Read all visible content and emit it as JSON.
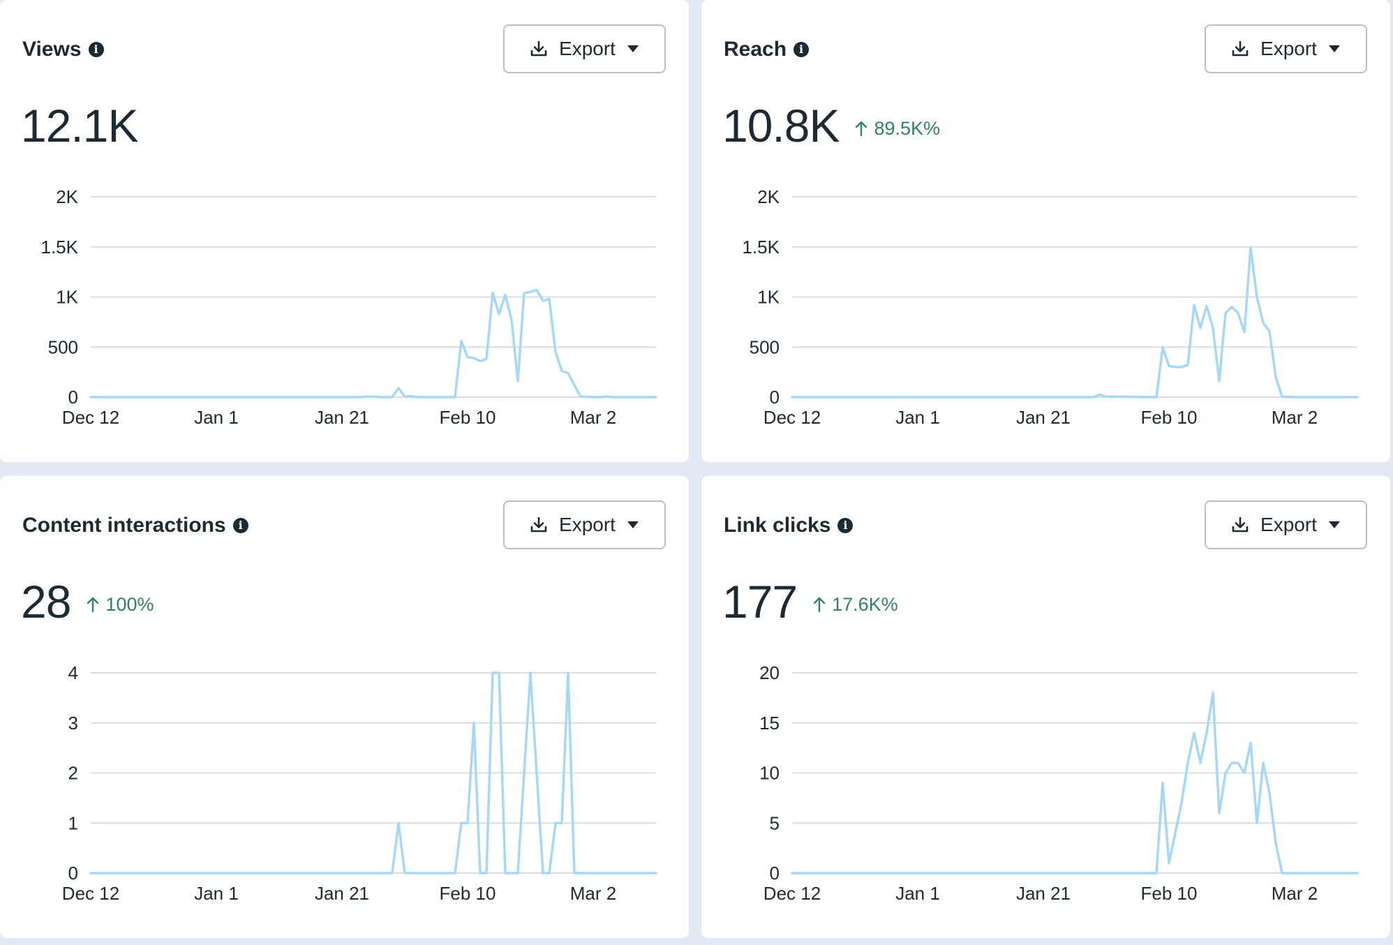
{
  "export_label": "Export",
  "colors": {
    "line": "#a5d8f7",
    "grid": "#dadde1",
    "positive": "#31845a",
    "text": "#1c2b33"
  },
  "icons": {
    "info": "info-icon",
    "export": "download-icon",
    "dropdown": "caret-down-icon",
    "change": "arrow-up-icon"
  },
  "cards": [
    {
      "title": "Views",
      "value": "12.1K",
      "change": ""
    },
    {
      "title": "Reach",
      "value": "10.8K",
      "change": "89.5K%"
    },
    {
      "title": "Content interactions",
      "value": "28",
      "change": "100%"
    },
    {
      "title": "Link clicks",
      "value": "177",
      "change": "17.6K%"
    }
  ],
  "chart_data": [
    {
      "type": "line",
      "title": "Views",
      "x_range": [
        "2023-12-12",
        "2024-03-11"
      ],
      "x_ticks": [
        "Dec 12",
        "Jan 1",
        "Jan 21",
        "Feb 10",
        "Mar 2"
      ],
      "y_ticks": [
        "0",
        "500",
        "1K",
        "1.5K",
        "2K"
      ],
      "ylim": [
        0,
        2000
      ],
      "grid": true,
      "points": [
        [
          "2023-12-12",
          0
        ],
        [
          "2024-01-24",
          0
        ],
        [
          "2024-01-25",
          5
        ],
        [
          "2024-01-27",
          0
        ],
        [
          "2024-01-29",
          0
        ],
        [
          "2024-01-30",
          90
        ],
        [
          "2024-01-31",
          5
        ],
        [
          "2024-02-01",
          10
        ],
        [
          "2024-02-02",
          0
        ],
        [
          "2024-02-07",
          0
        ],
        [
          "2024-02-08",
          0
        ],
        [
          "2024-02-09",
          560
        ],
        [
          "2024-02-10",
          400
        ],
        [
          "2024-02-11",
          390
        ],
        [
          "2024-02-12",
          360
        ],
        [
          "2024-02-13",
          380
        ],
        [
          "2024-02-14",
          1040
        ],
        [
          "2024-02-15",
          830
        ],
        [
          "2024-02-16",
          1020
        ],
        [
          "2024-02-17",
          770
        ],
        [
          "2024-02-18",
          160
        ],
        [
          "2024-02-19",
          1040
        ],
        [
          "2024-02-20",
          1050
        ],
        [
          "2024-02-21",
          1070
        ],
        [
          "2024-02-22",
          960
        ],
        [
          "2024-02-23",
          980
        ],
        [
          "2024-02-24",
          450
        ],
        [
          "2024-02-25",
          260
        ],
        [
          "2024-02-26",
          240
        ],
        [
          "2024-02-27",
          120
        ],
        [
          "2024-02-28",
          5
        ],
        [
          "2024-03-01",
          0
        ],
        [
          "2024-03-02",
          0
        ],
        [
          "2024-03-03",
          5
        ],
        [
          "2024-03-04",
          0
        ],
        [
          "2024-03-11",
          0
        ]
      ]
    },
    {
      "type": "line",
      "title": "Reach",
      "x_range": [
        "2023-12-12",
        "2024-03-11"
      ],
      "x_ticks": [
        "Dec 12",
        "Jan 1",
        "Jan 21",
        "Feb 10",
        "Mar 2"
      ],
      "y_ticks": [
        "0",
        "500",
        "1K",
        "1.5K",
        "2K"
      ],
      "ylim": [
        0,
        2000
      ],
      "grid": true,
      "points": [
        [
          "2023-12-12",
          0
        ],
        [
          "2024-01-24",
          0
        ],
        [
          "2024-01-29",
          0
        ],
        [
          "2024-01-30",
          25
        ],
        [
          "2024-01-31",
          5
        ],
        [
          "2024-02-07",
          0
        ],
        [
          "2024-02-08",
          0
        ],
        [
          "2024-02-09",
          500
        ],
        [
          "2024-02-10",
          310
        ],
        [
          "2024-02-11",
          300
        ],
        [
          "2024-02-12",
          300
        ],
        [
          "2024-02-13",
          320
        ],
        [
          "2024-02-14",
          920
        ],
        [
          "2024-02-15",
          690
        ],
        [
          "2024-02-16",
          910
        ],
        [
          "2024-02-17",
          690
        ],
        [
          "2024-02-18",
          160
        ],
        [
          "2024-02-19",
          840
        ],
        [
          "2024-02-20",
          900
        ],
        [
          "2024-02-21",
          840
        ],
        [
          "2024-02-22",
          650
        ],
        [
          "2024-02-23",
          1490
        ],
        [
          "2024-02-24",
          1000
        ],
        [
          "2024-02-25",
          740
        ],
        [
          "2024-02-26",
          660
        ],
        [
          "2024-02-27",
          200
        ],
        [
          "2024-02-28",
          5
        ],
        [
          "2024-03-01",
          0
        ],
        [
          "2024-03-11",
          0
        ]
      ]
    },
    {
      "type": "line",
      "title": "Content interactions",
      "x_range": [
        "2023-12-12",
        "2024-03-11"
      ],
      "x_ticks": [
        "Dec 12",
        "Jan 1",
        "Jan 21",
        "Feb 10",
        "Mar 2"
      ],
      "y_ticks": [
        "0",
        "1",
        "2",
        "3",
        "4"
      ],
      "ylim": [
        0,
        4
      ],
      "grid": true,
      "points": [
        [
          "2023-12-12",
          0
        ],
        [
          "2024-01-29",
          0
        ],
        [
          "2024-01-30",
          1
        ],
        [
          "2024-01-31",
          0
        ],
        [
          "2024-02-08",
          0
        ],
        [
          "2024-02-09",
          1
        ],
        [
          "2024-02-10",
          1
        ],
        [
          "2024-02-11",
          3
        ],
        [
          "2024-02-12",
          0
        ],
        [
          "2024-02-13",
          0
        ],
        [
          "2024-02-14",
          4
        ],
        [
          "2024-02-15",
          4
        ],
        [
          "2024-02-16",
          0
        ],
        [
          "2024-02-17",
          0
        ],
        [
          "2024-02-18",
          0
        ],
        [
          "2024-02-20",
          4
        ],
        [
          "2024-02-22",
          0
        ],
        [
          "2024-02-23",
          0
        ],
        [
          "2024-02-24",
          1
        ],
        [
          "2024-02-25",
          1
        ],
        [
          "2024-02-26",
          4
        ],
        [
          "2024-02-27",
          0
        ],
        [
          "2024-03-11",
          0
        ]
      ]
    },
    {
      "type": "line",
      "title": "Link clicks",
      "x_range": [
        "2023-12-12",
        "2024-03-11"
      ],
      "x_ticks": [
        "Dec 12",
        "Jan 1",
        "Jan 21",
        "Feb 10",
        "Mar 2"
      ],
      "y_ticks": [
        "0",
        "5",
        "10",
        "15",
        "20"
      ],
      "ylim": [
        0,
        20
      ],
      "grid": true,
      "points": [
        [
          "2023-12-12",
          0
        ],
        [
          "2024-02-08",
          0
        ],
        [
          "2024-02-09",
          9
        ],
        [
          "2024-02-10",
          1
        ],
        [
          "2024-02-11",
          4
        ],
        [
          "2024-02-12",
          7
        ],
        [
          "2024-02-13",
          11
        ],
        [
          "2024-02-14",
          14
        ],
        [
          "2024-02-15",
          11
        ],
        [
          "2024-02-16",
          14
        ],
        [
          "2024-02-17",
          18
        ],
        [
          "2024-02-18",
          6
        ],
        [
          "2024-02-19",
          10
        ],
        [
          "2024-02-20",
          11
        ],
        [
          "2024-02-21",
          11
        ],
        [
          "2024-02-22",
          10
        ],
        [
          "2024-02-23",
          13
        ],
        [
          "2024-02-24",
          5
        ],
        [
          "2024-02-25",
          11
        ],
        [
          "2024-02-26",
          8
        ],
        [
          "2024-02-27",
          3
        ],
        [
          "2024-02-28",
          0
        ],
        [
          "2024-03-11",
          0
        ]
      ]
    }
  ]
}
